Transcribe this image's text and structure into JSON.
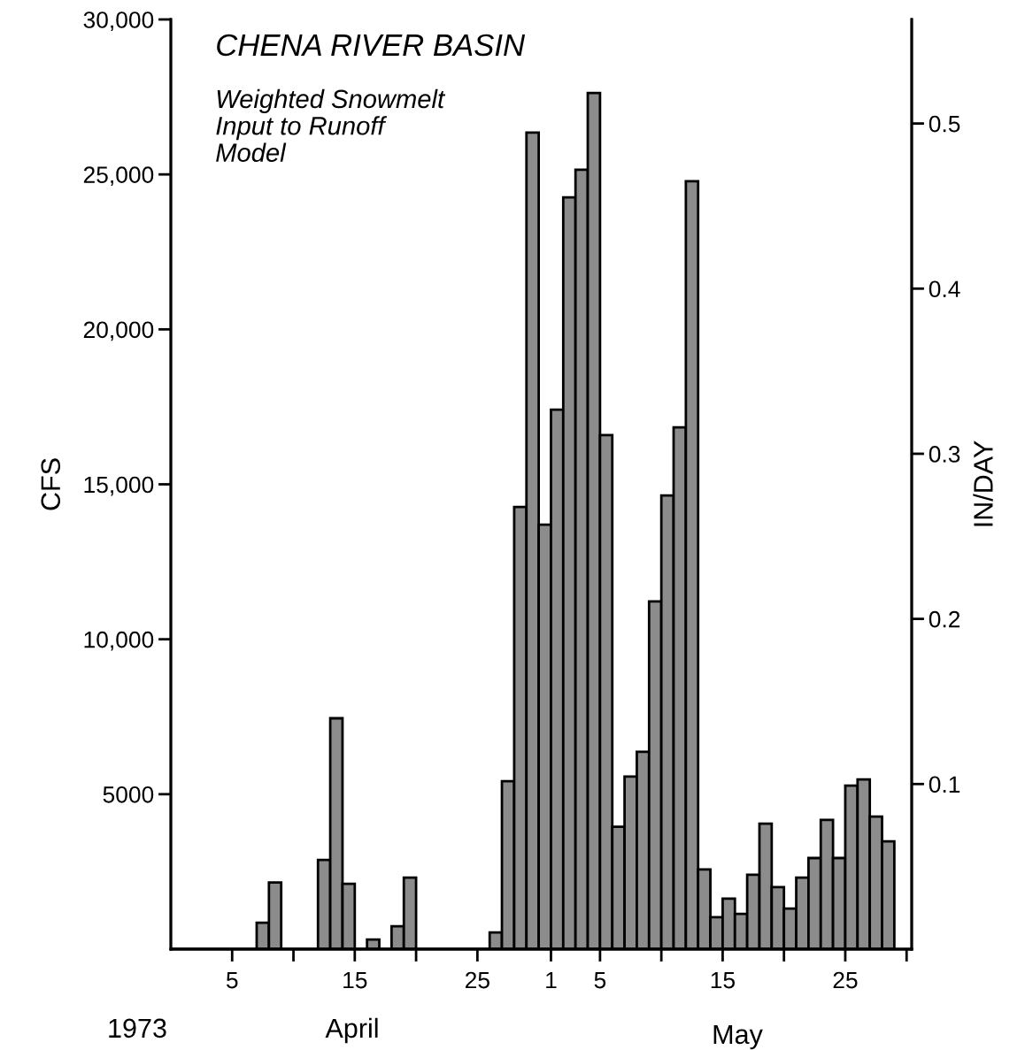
{
  "chart_data": {
    "type": "histogram",
    "title": "CHENA RIVER BASIN",
    "subtitle": "Weighted Snowmelt\nInput to Runoff\nModel",
    "ylabel": "CFS",
    "y2label": "IN/DAY",
    "annotations": [
      "1973",
      "April",
      "May"
    ],
    "bins": [
      "1973-03-31",
      "1973-04-01",
      "1973-04-02",
      "1973-04-03",
      "1973-04-04",
      "1973-04-05",
      "1973-04-06",
      "1973-04-07",
      "1973-04-08",
      "1973-04-09",
      "1973-04-10",
      "1973-04-11",
      "1973-04-12",
      "1973-04-13",
      "1973-04-14",
      "1973-04-15",
      "1973-04-16",
      "1973-04-17",
      "1973-04-18",
      "1973-04-19",
      "1973-04-20",
      "1973-04-21",
      "1973-04-22",
      "1973-04-23",
      "1973-04-24",
      "1973-04-25",
      "1973-04-26",
      "1973-04-27",
      "1973-04-28",
      "1973-04-29",
      "1973-04-30",
      "1973-05-01",
      "1973-05-02",
      "1973-05-03",
      "1973-05-04",
      "1973-05-05",
      "1973-05-06",
      "1973-05-07",
      "1973-05-08",
      "1973-05-09",
      "1973-05-10",
      "1973-05-11",
      "1973-05-12",
      "1973-05-13",
      "1973-05-14",
      "1973-05-15",
      "1973-05-16",
      "1973-05-17",
      "1973-05-18",
      "1973-05-19",
      "1973-05-20",
      "1973-05-21",
      "1973-05-22",
      "1973-05-23",
      "1973-05-24",
      "1973-05-25",
      "1973-05-26",
      "1973-05-27",
      "1973-05-28",
      "1973-05-29"
    ],
    "values": [
      0,
      0,
      0,
      0,
      0,
      0,
      0,
      850,
      2150,
      0,
      0,
      0,
      2880,
      7450,
      2110,
      0,
      310,
      0,
      740,
      2310,
      0,
      0,
      0,
      0,
      0,
      0,
      540,
      5420,
      14270,
      26350,
      13700,
      17410,
      24260,
      25150,
      27630,
      16590,
      3950,
      5570,
      6370,
      11220,
      14640,
      16840,
      24780,
      2570,
      1030,
      1630,
      1140,
      2400,
      4050,
      2000,
      1310,
      2310,
      2940,
      4170,
      2940,
      5280,
      5480,
      4280,
      3480
    ],
    "color": "#8c8c8c",
    "xlim": [
      "1973-03-31",
      "1973-05-30T10:00"
    ],
    "xticks": [
      {
        "value": "1973-04-05",
        "label": "5"
      },
      {
        "value": "1973-04-10",
        "label": null
      },
      {
        "value": "1973-04-15",
        "label": "15"
      },
      {
        "value": "1973-04-20",
        "label": null
      },
      {
        "value": "1973-04-25",
        "label": "25"
      },
      {
        "value": "1973-05-01",
        "label": "1"
      },
      {
        "value": "1973-05-05",
        "label": "5"
      },
      {
        "value": "1973-05-10",
        "label": null
      },
      {
        "value": "1973-05-15",
        "label": "15"
      },
      {
        "value": "1973-05-20",
        "label": null
      },
      {
        "value": "1973-05-25",
        "label": "25"
      },
      {
        "value": "1973-05-30",
        "label": null
      }
    ],
    "ylim": [
      0,
      30000
    ],
    "yticks": [
      {
        "value": 5000,
        "label": "5000"
      },
      {
        "value": 10000,
        "label": "10,000"
      },
      {
        "value": 15000,
        "label": "15,000"
      },
      {
        "value": 20000,
        "label": "20,000"
      },
      {
        "value": 25000,
        "label": "25,000"
      },
      {
        "value": 30000,
        "label": "30,000"
      }
    ],
    "y2lim": [
      0,
      0.563
    ],
    "y2ticks": [
      0.1,
      0.2,
      0.3,
      0.4,
      0.5
    ],
    "grid": false,
    "legend": false
  }
}
